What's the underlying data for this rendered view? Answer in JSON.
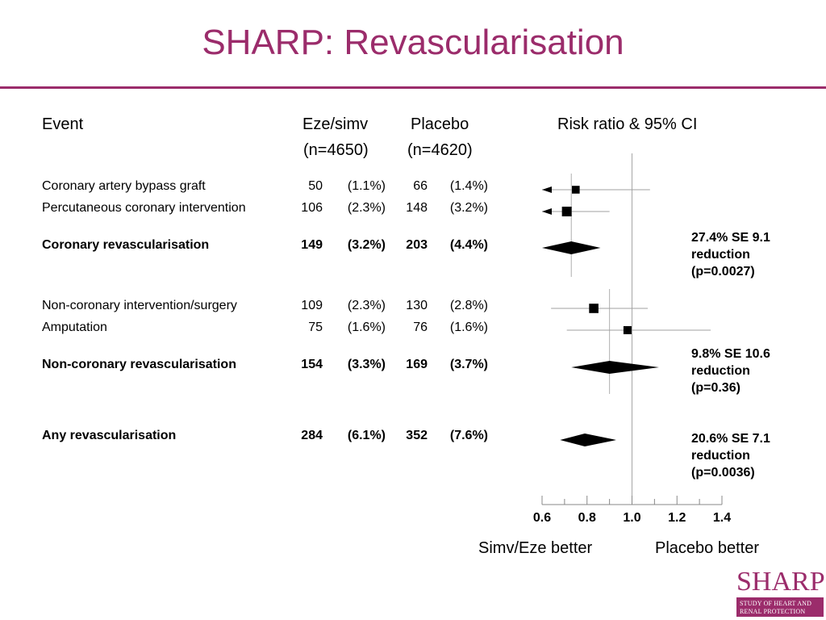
{
  "title": "SHARP: Revascularisation",
  "headers": {
    "event": "Event",
    "eze": "Eze/simv",
    "eze_n": "(n=4650)",
    "placebo": "Placebo",
    "placebo_n": "(n=4620)",
    "rr": "Risk ratio & 95% CI"
  },
  "rows": [
    {
      "label": "Coronary artery bypass graft",
      "eze": "50",
      "eze_pct": "(1.1%)",
      "pla": "66",
      "pla_pct": "(1.4%)",
      "bold": false
    },
    {
      "label": "Percutaneous coronary intervention",
      "eze": "106",
      "eze_pct": "(2.3%)",
      "pla": "148",
      "pla_pct": "(3.2%)",
      "bold": false
    },
    {
      "label": "Coronary revascularisation",
      "eze": "149",
      "eze_pct": "(3.2%)",
      "pla": "203",
      "pla_pct": "(4.4%)",
      "bold": true
    },
    {
      "label": "Non-coronary intervention/surgery",
      "eze": "109",
      "eze_pct": "(2.3%)",
      "pla": "130",
      "pla_pct": "(2.8%)",
      "bold": false
    },
    {
      "label": "Amputation",
      "eze": "75",
      "eze_pct": "(1.6%)",
      "pla": "76",
      "pla_pct": "(1.6%)",
      "bold": false
    },
    {
      "label": "Non-coronary revascularisation",
      "eze": "154",
      "eze_pct": "(3.3%)",
      "pla": "169",
      "pla_pct": "(3.7%)",
      "bold": true
    },
    {
      "label": "Any revascularisation",
      "eze": "284",
      "eze_pct": "(6.1%)",
      "pla": "352",
      "pla_pct": "(7.6%)",
      "bold": true
    }
  ],
  "results": [
    {
      "line1": "27.4% SE 9.1",
      "line2": "reduction",
      "line3": "(p=0.0027)"
    },
    {
      "line1": "9.8% SE 10.6",
      "line2": "reduction",
      "line3": "(p=0.36)"
    },
    {
      "line1": "20.6% SE 7.1",
      "line2": "reduction",
      "line3": "(p=0.0036)"
    }
  ],
  "axis": {
    "left_label": "Simv/Eze better",
    "right_label": "Placebo better"
  },
  "chart_data": {
    "type": "forest",
    "xlabel": "",
    "ylabel": "",
    "xlim": [
      0.6,
      1.4
    ],
    "ticks": [
      0.6,
      0.8,
      1.0,
      1.2,
      1.4
    ],
    "tick_labels": [
      "0.6",
      "0.8",
      "1.0",
      "1.2",
      "1.4"
    ],
    "points": [
      {
        "name": "Coronary artery bypass graft",
        "rr": 0.75,
        "lo": 0.6,
        "hi": 1.08,
        "kind": "square",
        "weight": 0.45,
        "arrow_left": true
      },
      {
        "name": "Percutaneous coronary intervention",
        "rr": 0.71,
        "lo": 0.6,
        "hi": 0.9,
        "kind": "square",
        "weight": 0.75,
        "arrow_left": true
      },
      {
        "name": "Coronary revascularisation",
        "rr": 0.73,
        "lo": 0.6,
        "hi": 0.86,
        "kind": "diamond",
        "group_rr": 0.73
      },
      {
        "name": "Non-coronary intervention/surgery",
        "rr": 0.83,
        "lo": 0.64,
        "hi": 1.07,
        "kind": "square",
        "weight": 0.7
      },
      {
        "name": "Amputation",
        "rr": 0.98,
        "lo": 0.71,
        "hi": 1.35,
        "kind": "square",
        "weight": 0.5
      },
      {
        "name": "Non-coronary revascularisation",
        "rr": 0.9,
        "lo": 0.73,
        "hi": 1.12,
        "kind": "diamond",
        "group_rr": 0.9
      },
      {
        "name": "Any revascularisation",
        "rr": 0.79,
        "lo": 0.68,
        "hi": 0.93,
        "kind": "diamond"
      }
    ]
  },
  "logo": {
    "name": "SHARP",
    "line1": "STUDY OF HEART AND",
    "line2": "RENAL PROTECTION"
  }
}
